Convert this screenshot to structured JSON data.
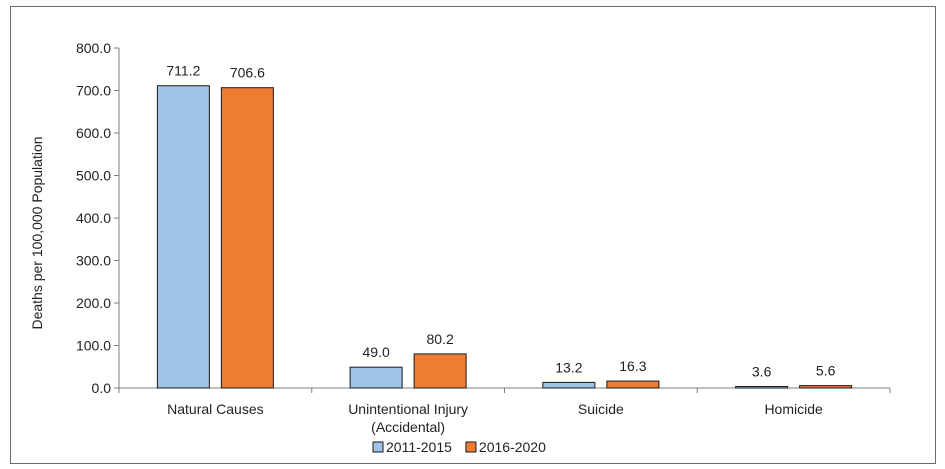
{
  "chart_data": {
    "type": "bar",
    "title": "",
    "xlabel": "",
    "ylabel": "Deaths per 100,000 Population",
    "ylim": [
      0,
      800
    ],
    "yticks": [
      "0.0",
      "100.0",
      "200.0",
      "300.0",
      "400.0",
      "500.0",
      "600.0",
      "700.0",
      "800.0"
    ],
    "categories": [
      [
        "Natural Causes"
      ],
      [
        "Unintentional Injury",
        "(Accidental)"
      ],
      [
        "Suicide"
      ],
      [
        "Homicide"
      ]
    ],
    "series": [
      {
        "name": "2011-2015",
        "color": "#9dc3e6",
        "values": [
          711.2,
          49.0,
          13.2,
          3.6
        ],
        "labels": [
          "711.2",
          "49.0",
          "13.2",
          "3.6"
        ]
      },
      {
        "name": "2016-2020",
        "color": "#ed7d31",
        "values": [
          706.6,
          80.2,
          16.3,
          5.6
        ],
        "labels": [
          "706.6",
          "80.2",
          "16.3",
          "5.6"
        ]
      }
    ],
    "grid": false,
    "legend_position": "bottom"
  }
}
